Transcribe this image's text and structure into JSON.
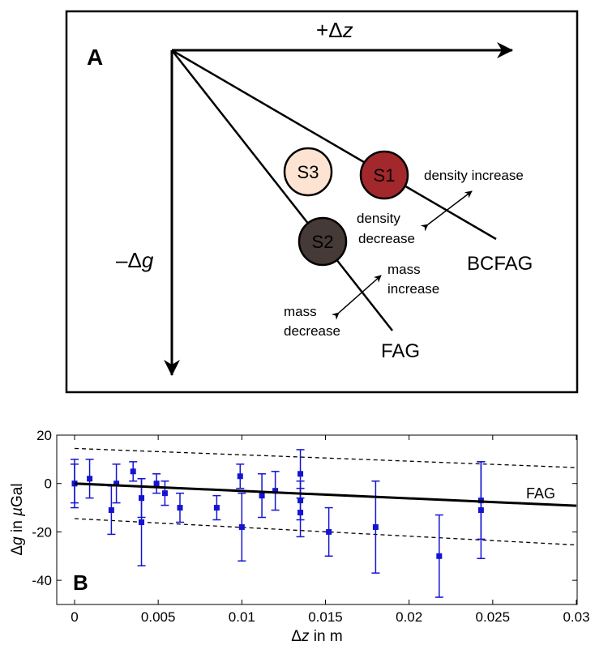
{
  "diagram_a": {
    "panel_label": "A",
    "x_axis_label": {
      "prefix": "+",
      "delta": "Δ",
      "var": "z"
    },
    "y_axis_label": {
      "prefix": "–",
      "delta": "Δ",
      "var": "g"
    },
    "lines": {
      "bcfag": "BCFAG",
      "fag": "FAG"
    },
    "stations": [
      {
        "label": "S3",
        "fill": "#fde3d2",
        "text_color": "#000000"
      },
      {
        "label": "S1",
        "fill": "#a3282b",
        "text_color": "#ffffff"
      },
      {
        "label": "S2",
        "fill": "#463a37",
        "text_color": "#ffffff"
      }
    ],
    "annotations": {
      "density_increase": "density increase",
      "density_decrease_1": "density",
      "density_decrease_2": "decrease",
      "mass_increase_1": "mass",
      "mass_increase_2": "increase",
      "mass_decrease_1": "mass",
      "mass_decrease_2": "decrease"
    }
  },
  "chart_data": {
    "type": "scatter",
    "panel_label": "B",
    "xlabel": {
      "delta": "Δ",
      "var": "z",
      "unit": " in m"
    },
    "ylabel": {
      "delta": "Δ",
      "var": "g",
      "mid": " in ",
      "mu": "µ",
      "unit": "Gal"
    },
    "xlim": [
      0,
      0.03
    ],
    "ylim": [
      -50,
      20
    ],
    "xticks": [
      0,
      0.005,
      0.01,
      0.015,
      0.02,
      0.025,
      0.03
    ],
    "xtick_labels": [
      "0",
      "0.005",
      "0.01",
      "0.015",
      "0.02",
      "0.025",
      "0.03"
    ],
    "yticks": [
      -40,
      -20,
      0,
      20
    ],
    "ytick_labels": [
      "-40",
      "-20",
      "0",
      "20"
    ],
    "grid": false,
    "point_color": "#1414d2",
    "points": [
      {
        "x": 0.0,
        "y": 0,
        "err": 10
      },
      {
        "x": 0.0,
        "y": 0,
        "err": 8
      },
      {
        "x": 0.0009,
        "y": 2,
        "err": 8
      },
      {
        "x": 0.0022,
        "y": -11,
        "err": 10
      },
      {
        "x": 0.0025,
        "y": 0,
        "err": 8
      },
      {
        "x": 0.0035,
        "y": 5,
        "err": 4
      },
      {
        "x": 0.004,
        "y": -6,
        "err": 8
      },
      {
        "x": 0.004,
        "y": -16,
        "err": 18
      },
      {
        "x": 0.0049,
        "y": 0,
        "err": 4
      },
      {
        "x": 0.0054,
        "y": -4,
        "err": 5
      },
      {
        "x": 0.0063,
        "y": -10,
        "err": 6
      },
      {
        "x": 0.0085,
        "y": -10,
        "err": 5
      },
      {
        "x": 0.0099,
        "y": 3,
        "err": 5
      },
      {
        "x": 0.01,
        "y": -18,
        "err": 14
      },
      {
        "x": 0.0112,
        "y": -5,
        "err": 9
      },
      {
        "x": 0.012,
        "y": -3,
        "err": 8
      },
      {
        "x": 0.0135,
        "y": 4,
        "err": 10
      },
      {
        "x": 0.0135,
        "y": -7,
        "err": 8
      },
      {
        "x": 0.0135,
        "y": -12,
        "err": 10
      },
      {
        "x": 0.0152,
        "y": -20,
        "err": 10
      },
      {
        "x": 0.018,
        "y": -18,
        "err": 19
      },
      {
        "x": 0.0218,
        "y": -30,
        "err": 17
      },
      {
        "x": 0.0243,
        "y": -7,
        "err": 16
      },
      {
        "x": 0.0243,
        "y": -11,
        "err": 20
      }
    ],
    "fit_line": {
      "name": "FAG",
      "x": [
        0,
        0.03
      ],
      "y": [
        0,
        -9.2
      ]
    },
    "bound_upper": {
      "x": [
        0,
        0.03
      ],
      "y": [
        14.5,
        6.6
      ]
    },
    "bound_lower": {
      "x": [
        0,
        0.03
      ],
      "y": [
        -14.5,
        -25.4
      ]
    }
  }
}
